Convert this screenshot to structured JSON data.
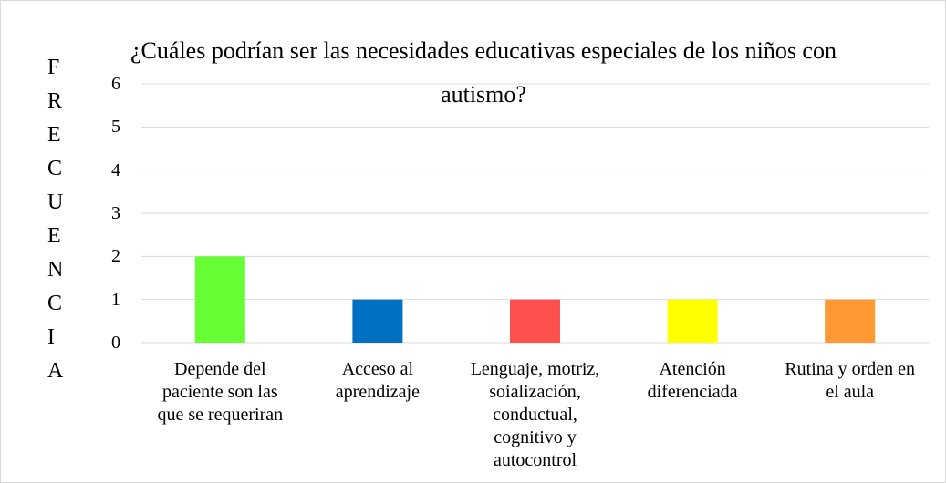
{
  "chart_data": {
    "type": "bar",
    "title": "¿Cuáles podrían ser las necesidades educativas especiales de los niños con autismo?",
    "y_label": "FRECUENCIA",
    "categories": [
      "Depende del paciente son las que se requeriran",
      "Acceso al aprendizaje",
      "Lenguaje, motriz, soialización, conductual, cognitivo y autocontrol",
      "Atención diferenciada",
      "Rutina y orden en el aula"
    ],
    "values": [
      2,
      1,
      1,
      1,
      1
    ],
    "colors": [
      "#66ff33",
      "#0070c0",
      "#ff5050",
      "#ffff00",
      "#ff9933"
    ],
    "ylim": [
      0,
      6
    ],
    "yticks": [
      0,
      1,
      2,
      3,
      4,
      5,
      6
    ],
    "grid": true
  }
}
